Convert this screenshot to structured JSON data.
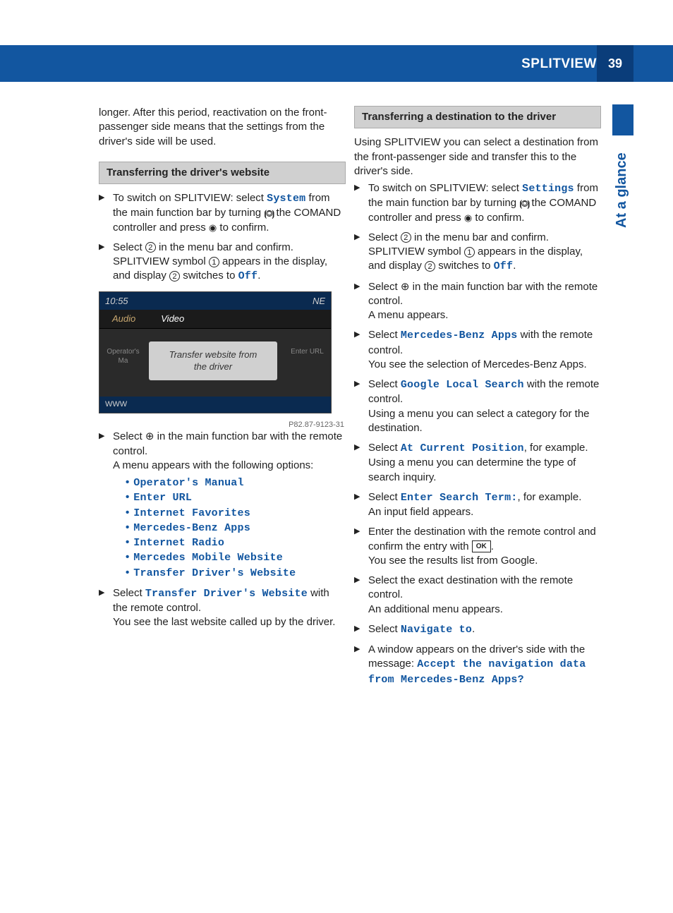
{
  "header": {
    "title": "SPLITVIEW",
    "page_number": "39",
    "side_tab": "At a glance"
  },
  "colors": {
    "brand_blue": "#1256a0",
    "dark_blue": "#0a3d7a",
    "section_bg": "#d0d0d0",
    "ui_text": "#1256a0"
  },
  "left": {
    "intro": "longer. After this period, reactivation on the front-passenger side means that the settings from the driver's side will be used.",
    "section1_title": "Transferring the driver's website",
    "step1_a": "To switch on SPLITVIEW: select ",
    "step1_ui": "System",
    "step1_b": " from the main function bar by turning ",
    "step1_c": " the COMAND controller and press ",
    "step1_d": " to confirm.",
    "step2_a": "Select ",
    "step2_b": " in the menu bar and confirm. SPLITVIEW symbol ",
    "step2_c": " appears in the display, and display ",
    "step2_d": " switches to ",
    "step2_ui": "Off",
    "step2_e": ".",
    "screenshot": {
      "time": "10:55",
      "ne": "NE",
      "tab_audio": "Audio",
      "tab_video": "Video",
      "left_icon": "Operator's Ma",
      "right_icon": "Enter URL",
      "popup_l1": "Transfer website from",
      "popup_l2": "the driver",
      "bottom": "WWW",
      "caption": "P82.87-9123-31"
    },
    "step3_a": "Select ",
    "step3_b": " in the main function bar with the remote control.",
    "step3_sub": "A menu appears with the following options:",
    "menu_options": [
      "Operator's Manual",
      "Enter URL",
      "Internet Favorites",
      "Mercedes-Benz Apps",
      "Internet Radio",
      "Mercedes Mobile Website",
      "Transfer Driver's Website"
    ],
    "step4_a": "Select ",
    "step4_ui": "Transfer Driver's Website",
    "step4_b": " with the remote control.",
    "step4_sub": "You see the last website called up by the driver."
  },
  "right": {
    "section1_title": "Transferring a destination to the driver",
    "intro": "Using SPLITVIEW you can select a destination from the front-passenger side and transfer this to the driver's side.",
    "s1_a": "To switch on SPLITVIEW: select ",
    "s1_ui": "Settings",
    "s1_b": " from the main function bar by turning ",
    "s1_c": " the COMAND controller and press ",
    "s1_d": " to confirm.",
    "s2_a": "Select ",
    "s2_b": " in the menu bar and confirm. SPLITVIEW symbol ",
    "s2_c": " appears in the display, and display ",
    "s2_d": " switches to ",
    "s2_ui": "Off",
    "s2_e": ".",
    "s3_a": "Select ",
    "s3_b": " in the main function bar with the remote control.",
    "s3_sub": "A menu appears.",
    "s4_a": "Select ",
    "s4_ui": "Mercedes-Benz Apps",
    "s4_b": " with the remote control.",
    "s4_sub": "You see the selection of Mercedes-Benz Apps.",
    "s5_a": "Select ",
    "s5_ui": "Google Local Search",
    "s5_b": " with the remote control.",
    "s5_sub": "Using a menu you can select a category for the destination.",
    "s6_a": "Select ",
    "s6_ui": "At Current Position",
    "s6_b": ", for example.",
    "s6_sub": "Using a menu you can determine the type of search inquiry.",
    "s7_a": "Select ",
    "s7_ui": "Enter Search Term:",
    "s7_b": ", for example.",
    "s7_sub": "An input field appears.",
    "s8_a": "Enter the destination with the remote control and confirm the entry with ",
    "s8_ok": "OK",
    "s8_b": ".",
    "s8_sub": "You see the results list from Google.",
    "s9_a": "Select the exact destination with the remote control.",
    "s9_sub": "An additional menu appears.",
    "s10_a": "Select ",
    "s10_ui": "Navigate to",
    "s10_b": ".",
    "s11_a": "A window appears on the driver's side with the message: ",
    "s11_ui": "Accept the navigation data from Mercedes-Benz Apps?"
  }
}
